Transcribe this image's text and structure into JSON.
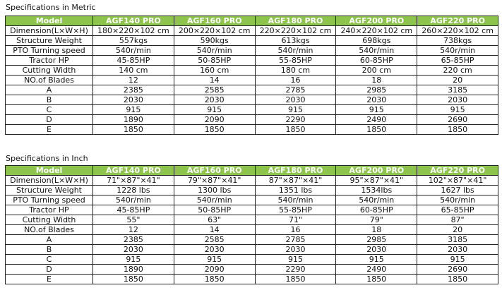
{
  "tables": [
    {
      "title": "Specifications in Metric",
      "header": [
        "Model",
        "AGF140 PRO",
        "AGF160 PRO",
        "AGF180 PRO",
        "AGF200 PRO",
        "AGF220 PRO"
      ],
      "rows": [
        [
          "Dimension(L×W×H)",
          "180×220×102 cm",
          "200×220×102 cm",
          "220×220×102 cm",
          "240×220×102 cm",
          "260×220×102 cm"
        ],
        [
          "Structure Weight",
          "557kgs",
          "590kgs",
          "613kgs",
          "698kgs",
          "738kgs"
        ],
        [
          "PTO Turning speed",
          "540r/min",
          "540r/min",
          "540r/min",
          "540r/min",
          "540r/min"
        ],
        [
          "Tractor HP",
          "45-85HP",
          "50-85HP",
          "55-85HP",
          "60-85HP",
          "65-85HP"
        ],
        [
          "Cutting Width",
          "140 cm",
          "160 cm",
          "180 cm",
          "200 cm",
          "220 cm"
        ],
        [
          "NO.of Blades",
          "12",
          "14",
          "16",
          "18",
          "20"
        ],
        [
          "A",
          "2385",
          "2585",
          "2785",
          "2985",
          "3185"
        ],
        [
          "B",
          "2030",
          "2030",
          "2030",
          "2030",
          "2030"
        ],
        [
          "C",
          "915",
          "915",
          "915",
          "915",
          "915"
        ],
        [
          "D",
          "1890",
          "2090",
          "2290",
          "2490",
          "2690"
        ],
        [
          "E",
          "1850",
          "1850",
          "1850",
          "1850",
          "1850"
        ]
      ]
    },
    {
      "title": "Specifications in Inch",
      "header": [
        "Model",
        "AGF140 PRO",
        "AGF160 PRO",
        "AGF180 PRO",
        "AGF200 PRO",
        "AGF220 PRO"
      ],
      "rows": [
        [
          "Dimension(L×W×H)",
          "71\"×87\"×41\"",
          "79\"×87\"×41\"",
          "87\"×87\"×41\"",
          "95\"×87\"×41\"",
          "102\"×87\"×41\""
        ],
        [
          "Structure Weight",
          "1228 lbs",
          "1300 lbs",
          "1351 lbs",
          "1534lbs",
          "1627 lbs"
        ],
        [
          "PTO Turning speed",
          "540r/min",
          "540r/min",
          "540r/min",
          "540r/min",
          "540r/min"
        ],
        [
          "Tractor HP",
          "45-85HP",
          "50-85HP",
          "55-85HP",
          "60-85HP",
          "65-85HP"
        ],
        [
          "Cutting Width",
          "55\"",
          "63\"",
          "71\"",
          "79\"",
          "87\""
        ],
        [
          "NO.of Blades",
          "12",
          "14",
          "16",
          "18",
          "20"
        ],
        [
          "A",
          "2385",
          "2585",
          "2785",
          "2985",
          "3185"
        ],
        [
          "B",
          "2030",
          "2030",
          "2030",
          "2030",
          "2030"
        ],
        [
          "C",
          "915",
          "915",
          "915",
          "915",
          "915"
        ],
        [
          "D",
          "1890",
          "2090",
          "2290",
          "2490",
          "2690"
        ],
        [
          "E",
          "1850",
          "1850",
          "1850",
          "1850",
          "1850"
        ]
      ]
    }
  ],
  "colors": {
    "header_bg": "#8cc44c",
    "header_text": "#ffffff"
  }
}
